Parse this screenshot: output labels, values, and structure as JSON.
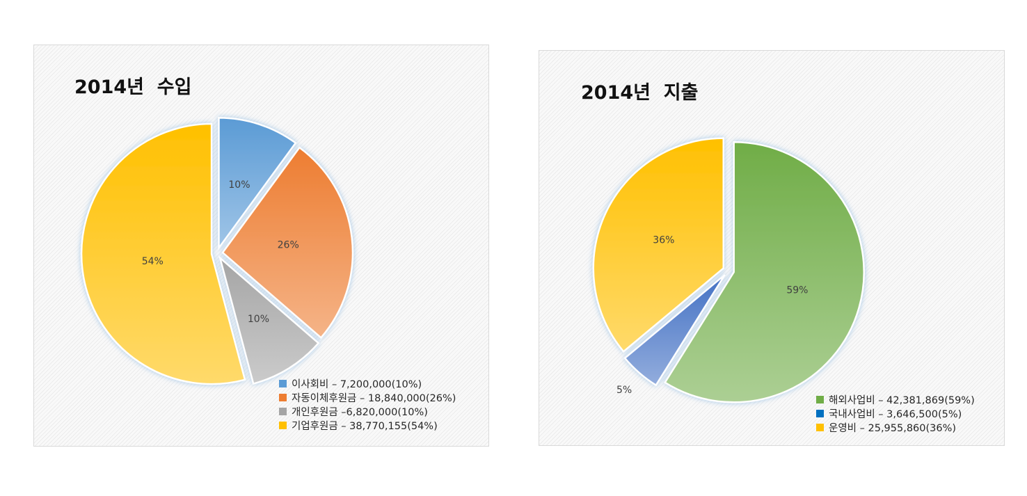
{
  "chart_data": [
    {
      "type": "pie",
      "title": "2014년  수입",
      "slices": [
        {
          "label": "이사회비",
          "legend": "이사회비 – 7,200,000(10%)",
          "value": 7200000,
          "percent_label": "10%",
          "color": "#5b9bd5"
        },
        {
          "label": "자동이체후원금",
          "legend": "자동이체후원금 – 18,840,000(26%)",
          "value": 18840000,
          "percent_label": "26%",
          "color": "#ed7d31"
        },
        {
          "label": "개인후원금",
          "legend": "개인후원금 –6,820,000(10%)",
          "value": 6820000,
          "percent_label": "10%",
          "color": "#a5a5a5"
        },
        {
          "label": "기업후원금",
          "legend": "기업후원금 – 38,770,155(54%)",
          "value": 38770155,
          "percent_label": "54%",
          "color": "#ffc000"
        }
      ],
      "legend_position": "bottom-right"
    },
    {
      "type": "pie",
      "title": "2014년  지출",
      "slices": [
        {
          "label": "해외사업비",
          "legend": "해외사업비 – 42,381,869(59%)",
          "value": 42381869,
          "percent_label": "59%",
          "color": "#70ad47"
        },
        {
          "label": "국내사업비",
          "legend": "국내사업비 – 3,646,500(5%)",
          "value": 3646500,
          "percent_label": "5%",
          "color": "#4472c4",
          "legend_color": "#0070c0"
        },
        {
          "label": "운영비",
          "legend": "운영비 – 25,955,860(36%)",
          "value": 25955860,
          "percent_label": "36%",
          "color": "#ffc000"
        }
      ],
      "legend_position": "bottom-right"
    }
  ]
}
